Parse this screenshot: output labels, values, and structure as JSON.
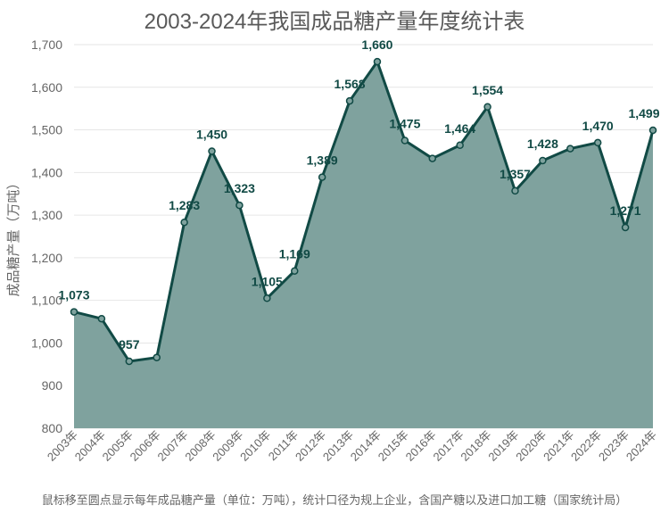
{
  "chart_data": {
    "type": "area",
    "title": "2003-2024年我国成品糖产量年度统计表",
    "ylabel": "成品糖产量（万吨）",
    "xlabel": "",
    "ylim": [
      800,
      1700
    ],
    "yticks": [
      800,
      900,
      1000,
      1100,
      1200,
      1300,
      1400,
      1500,
      1600,
      1700
    ],
    "ytick_labels": [
      "800",
      "900",
      "1,000",
      "1,100",
      "1,200",
      "1,300",
      "1,400",
      "1,500",
      "1,600",
      "1,700"
    ],
    "grid": true,
    "categories": [
      "2003年",
      "2004年",
      "2005年",
      "2006年",
      "2007年",
      "2008年",
      "2009年",
      "2010年",
      "2011年",
      "2012年",
      "2013年",
      "2014年",
      "2015年",
      "2016年",
      "2017年",
      "2018年",
      "2019年",
      "2020年",
      "2021年",
      "2022年",
      "2023年",
      "2024年"
    ],
    "series": [
      {
        "values": [
          1073,
          1057,
          957,
          966,
          1283,
          1450,
          1323,
          1105,
          1169,
          1389,
          1568,
          1660,
          1475,
          1433,
          1464,
          1554,
          1357,
          1428,
          1456,
          1470,
          1271,
          1499
        ],
        "labels": [
          "1,073",
          "",
          "957",
          "",
          "1,283",
          "1,450",
          "1,323",
          "1,105",
          "1,169",
          "1,389",
          "1,568",
          "1,660",
          "1,475",
          "",
          "1,464",
          "1,554",
          "1,357",
          "1,428",
          "",
          "1,470",
          "1,271",
          "1,499"
        ]
      }
    ],
    "colors": {
      "line": "#114a45",
      "fill": "#7fa29e"
    }
  },
  "footer": "鼠标移至圆点显示每年成品糖产量（单位：万吨），统计口径为规上企业，含国产糖以及进口加工糖（国家统计局）"
}
